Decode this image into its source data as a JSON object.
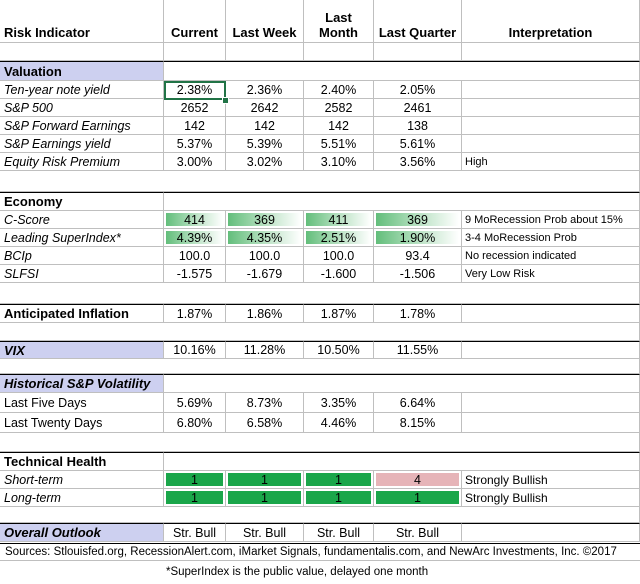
{
  "headers": {
    "indicator": "Risk Indicator",
    "current": "Current",
    "last_week": "Last Week",
    "last_month": "Last Month",
    "last_quarter": "Last Quarter",
    "interpretation": "Interpretation"
  },
  "valuation": {
    "title": "Valuation",
    "rows": [
      {
        "label": "Ten-year note yield",
        "current": "2.38%",
        "last_week": "2.36%",
        "last_month": "2.40%",
        "last_quarter": "2.05%",
        "interp": ""
      },
      {
        "label": "S&P 500",
        "current": "2652",
        "last_week": "2642",
        "last_month": "2582",
        "last_quarter": "2461",
        "interp": ""
      },
      {
        "label": "S&P Forward Earnings",
        "current": "142",
        "last_week": "142",
        "last_month": "142",
        "last_quarter": "138",
        "interp": ""
      },
      {
        "label": "S&P Earnings yield",
        "current": "5.37%",
        "last_week": "5.39%",
        "last_month": "5.51%",
        "last_quarter": "5.61%",
        "interp": ""
      },
      {
        "label": "Equity Risk Premium",
        "current": "3.00%",
        "last_week": "3.02%",
        "last_month": "3.10%",
        "last_quarter": "3.56%",
        "interp": "High"
      }
    ]
  },
  "economy": {
    "title": "Economy",
    "rows": [
      {
        "label": "C-Score",
        "current": "414",
        "last_week": "369",
        "last_month": "411",
        "last_quarter": "369",
        "interp": "9 MoRecession Prob about 15%"
      },
      {
        "label": "Leading SuperIndex*",
        "current": "4.39%",
        "last_week": "4.35%",
        "last_month": "2.51%",
        "last_quarter": "1.90%",
        "interp": "3-4 MoRecession Prob"
      },
      {
        "label": "BCIp",
        "current": "100.0",
        "last_week": "100.0",
        "last_month": "100.0",
        "last_quarter": "93.4",
        "interp": "No recession indicated"
      },
      {
        "label": "SLFSI",
        "current": "-1.575",
        "last_week": "-1.679",
        "last_month": "-1.600",
        "last_quarter": "-1.506",
        "interp": "Very Low Risk"
      }
    ]
  },
  "inflation": {
    "label": "Anticipated Inflation",
    "current": "1.87%",
    "last_week": "1.86%",
    "last_month": "1.87%",
    "last_quarter": "1.78%"
  },
  "vix": {
    "label": "VIX",
    "current": "10.16%",
    "last_week": "11.28%",
    "last_month": "10.50%",
    "last_quarter": "11.55%"
  },
  "volatility": {
    "title": "Historical  S&P Volatility",
    "rows": [
      {
        "label": "Last Five Days",
        "current": "5.69%",
        "last_week": "8.73%",
        "last_month": "3.35%",
        "last_quarter": "6.64%"
      },
      {
        "label": "Last Twenty Days",
        "current": "6.80%",
        "last_week": "6.58%",
        "last_month": "4.46%",
        "last_quarter": "8.15%"
      }
    ]
  },
  "technical": {
    "title": "Technical Health",
    "rows": [
      {
        "label": "Short-term",
        "current": "1",
        "last_week": "1",
        "last_month": "1",
        "last_quarter": "4",
        "interp": "Strongly Bullish"
      },
      {
        "label": "Long-term",
        "current": "1",
        "last_week": "1",
        "last_month": "1",
        "last_quarter": "1",
        "interp": "Strongly Bullish"
      }
    ]
  },
  "outlook": {
    "label": "Overall Outlook",
    "current": "Str. Bull",
    "last_week": "Str. Bull",
    "last_month": "Str. Bull",
    "last_quarter": "Str. Bull"
  },
  "footer": {
    "sources": "Sources: Stlouisfed.org, RecessionAlert.com, iMarket Signals, fundamentalis.com, and NewArc Investments, Inc. ©2017",
    "note": "*SuperIndex is the public value, delayed one month"
  },
  "colors": {
    "section_bg": "#cdd0f0",
    "bullish_green": "#1aa64a",
    "bearish_pink": "#e6b4b8",
    "heat_green": "#63be7b"
  }
}
